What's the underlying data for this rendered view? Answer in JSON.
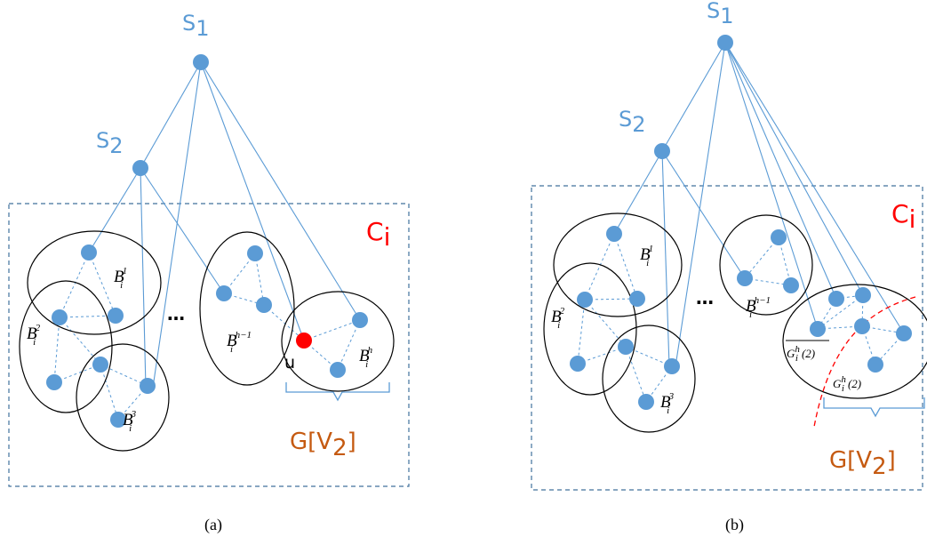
{
  "colors": {
    "node": "#5b9bd5",
    "edge": "#5b9bd5",
    "box": "#41719c",
    "label_blue": "#5b9bd5",
    "label_red": "#ff0000",
    "label_orange": "#c55a11",
    "ellipse": "#000000",
    "highlight_node": "#ff0000",
    "cut_line": "#ff0000"
  },
  "panel_a": {
    "caption": "(a)",
    "s1": {
      "base": "S",
      "sub": "1"
    },
    "s2": {
      "base": "S",
      "sub": "2"
    },
    "cluster": {
      "base": "C",
      "sub": "i"
    },
    "group": {
      "prefix": "G[V",
      "sub": "2",
      "suffix": "]"
    },
    "ellipsis": "…",
    "u_label": "u",
    "blocks": [
      {
        "base": "B",
        "sub": "i",
        "sup": "1"
      },
      {
        "base": "B",
        "sub": "i",
        "sup": "2"
      },
      {
        "base": "B",
        "sub": "i",
        "sup": "3"
      },
      {
        "base": "B",
        "sub": "i",
        "sup": "h−1"
      },
      {
        "base": "B",
        "sub": "i",
        "sup": "h"
      }
    ]
  },
  "panel_b": {
    "caption": "(b)",
    "s1": {
      "base": "S",
      "sub": "1"
    },
    "s2": {
      "base": "S",
      "sub": "2"
    },
    "cluster": {
      "base": "C",
      "sub": "i"
    },
    "group": {
      "prefix": "G[V",
      "sub": "2",
      "suffix": "]"
    },
    "ellipsis": "…",
    "blocks": [
      {
        "base": "B",
        "sub": "i",
        "sup": "1"
      },
      {
        "base": "B",
        "sub": "i",
        "sup": "2"
      },
      {
        "base": "B",
        "sub": "i",
        "sup": "3"
      },
      {
        "base": "B",
        "sub": "i",
        "sup": "h−1"
      }
    ],
    "g_bar": {
      "base": "G",
      "sub": "i",
      "sup": "h",
      "arg": "(2)"
    },
    "g_part": {
      "base": "G",
      "sub": "i",
      "sup": "h",
      "arg": "(2)"
    }
  }
}
